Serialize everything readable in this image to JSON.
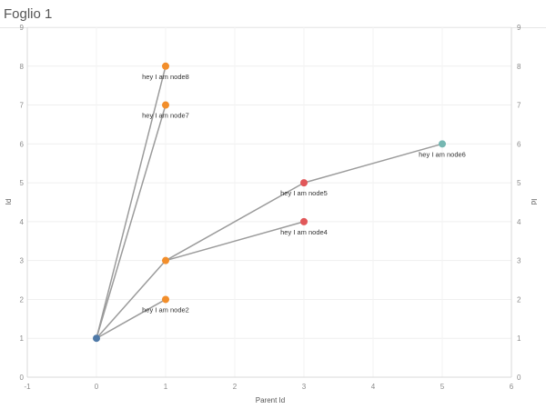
{
  "sheet": {
    "title": "Foglio 1"
  },
  "chart_data": {
    "type": "scatter",
    "xlabel": "Parent Id",
    "ylabel": "Id",
    "ylabel_right": "Id",
    "xlim": [
      -1,
      6
    ],
    "ylim": [
      0,
      9
    ],
    "xticks": [
      "-1",
      "0",
      "1",
      "2",
      "3",
      "4",
      "5",
      "6"
    ],
    "yticks": [
      "0",
      "1",
      "2",
      "3",
      "4",
      "5",
      "6",
      "7",
      "8",
      "9"
    ],
    "grid": true,
    "points": [
      {
        "x": 0,
        "y": 1,
        "label": "",
        "color": "#4e79a7"
      },
      {
        "x": 1,
        "y": 2,
        "label": "hey I am node2",
        "color": "#f28e2b"
      },
      {
        "x": 1,
        "y": 3,
        "label": "",
        "color": "#f28e2b"
      },
      {
        "x": 3,
        "y": 4,
        "label": "hey I am node4",
        "color": "#e15759"
      },
      {
        "x": 3,
        "y": 5,
        "label": "hey I am node5",
        "color": "#e15759"
      },
      {
        "x": 5,
        "y": 6,
        "label": "hey I am node6",
        "color": "#76b7b2"
      },
      {
        "x": 1,
        "y": 7,
        "label": "hey I am node7",
        "color": "#f28e2b"
      },
      {
        "x": 1,
        "y": 8,
        "label": "hey I am node8",
        "color": "#f28e2b"
      }
    ],
    "edges": [
      {
        "from": [
          0,
          1
        ],
        "to": [
          1,
          8
        ]
      },
      {
        "from": [
          0,
          1
        ],
        "to": [
          1,
          7
        ]
      },
      {
        "from": [
          0,
          1
        ],
        "to": [
          1,
          3
        ]
      },
      {
        "from": [
          0,
          1
        ],
        "to": [
          1,
          2
        ]
      },
      {
        "from": [
          1,
          3
        ],
        "to": [
          3,
          5
        ]
      },
      {
        "from": [
          1,
          3
        ],
        "to": [
          3,
          4
        ]
      },
      {
        "from": [
          3,
          5
        ],
        "to": [
          5,
          6
        ]
      }
    ],
    "edge_color": "#9b9b9b"
  }
}
